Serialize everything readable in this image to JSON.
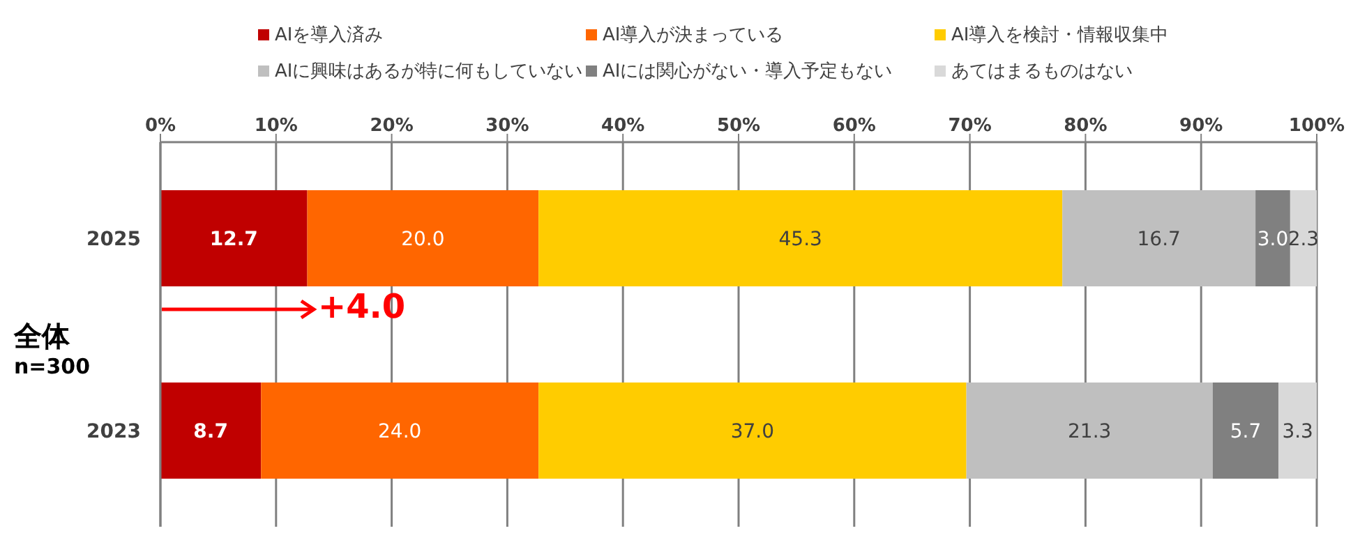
{
  "chart_data": {
    "type": "bar",
    "orientation": "horizontal",
    "stacked": true,
    "categories": [
      "2025",
      "2023"
    ],
    "series": [
      {
        "name": "AIを導入済み",
        "color": "#c00000",
        "values": [
          12.7,
          8.7
        ],
        "value_labels": [
          "12.7",
          "8.7"
        ]
      },
      {
        "name": "AI導入が決まっている",
        "color": "#ff6600",
        "values": [
          20.0,
          24.0
        ],
        "value_labels": [
          "20.0",
          "24.0"
        ]
      },
      {
        "name": "AI導入を検討・情報収集中",
        "color": "#ffcc00",
        "values": [
          45.3,
          37.0
        ],
        "value_labels": [
          "45.3",
          "37.0"
        ]
      },
      {
        "name": "AIに興味はあるが特に何もしていない",
        "color": "#bfbfbf",
        "values": [
          16.7,
          21.3
        ],
        "value_labels": [
          "16.7",
          "21.3"
        ]
      },
      {
        "name": "AIには関心がない・導入予定もない",
        "color": "#808080",
        "values": [
          3.0,
          5.7
        ],
        "value_labels": [
          "3.0",
          "5.7"
        ]
      },
      {
        "name": "あてはまるものはない",
        "color": "#d9d9d9",
        "values": [
          2.3,
          3.3
        ],
        "value_labels": [
          "2.3",
          "3.3"
        ]
      }
    ],
    "xlim": [
      0,
      100
    ],
    "xticks": [
      {
        "value": 0,
        "label": "0%"
      },
      {
        "value": 10,
        "label": "10%"
      },
      {
        "value": 20,
        "label": "20%"
      },
      {
        "value": 30,
        "label": "30%"
      },
      {
        "value": 40,
        "label": "40%"
      },
      {
        "value": 50,
        "label": "50%"
      },
      {
        "value": 60,
        "label": "60%"
      },
      {
        "value": 70,
        "label": "70%"
      },
      {
        "value": 80,
        "label": "80%"
      },
      {
        "value": 90,
        "label": "90%"
      },
      {
        "value": 100,
        "label": "100%"
      }
    ],
    "grid": "x",
    "legend": "top",
    "annotations": [
      "全体",
      "n=300",
      "+4.0"
    ]
  }
}
